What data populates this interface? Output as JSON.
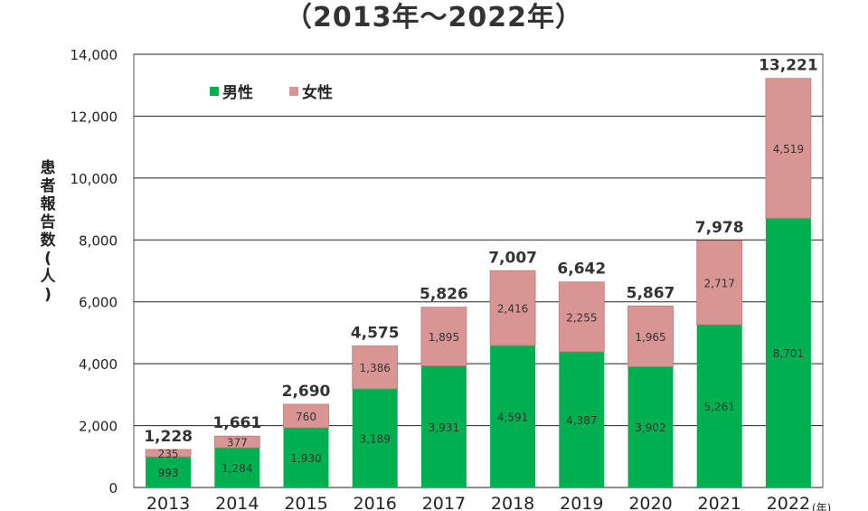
{
  "title": "（2013年～2022年）",
  "chart_data": {
    "type": "bar",
    "stacked": true,
    "title": "（2013年～2022年）",
    "ylabel": "患者報告数(人)",
    "xunit": "(年)",
    "categories": [
      "2013",
      "2014",
      "2015",
      "2016",
      "2017",
      "2018",
      "2019",
      "2020",
      "2021",
      "2022"
    ],
    "series": [
      {
        "name": "男性",
        "color": "#00b050",
        "values": [
          993,
          1284,
          1930,
          3189,
          3931,
          4591,
          4387,
          3902,
          5261,
          8701
        ]
      },
      {
        "name": "女性",
        "color": "#d99594",
        "values": [
          235,
          377,
          760,
          1386,
          1895,
          2416,
          2255,
          1965,
          2717,
          4519
        ]
      }
    ],
    "totals": [
      "1,228",
      "1,661",
      "2,690",
      "4,575",
      "5,826",
      "7,007",
      "6,642",
      "5,867",
      "7,978",
      "13,221"
    ],
    "value_labels": {
      "男性": [
        "993",
        "1,284",
        "1,930",
        "3,189",
        "3,931",
        "4,591",
        "4,387",
        "3,902",
        "5,261",
        "8,701"
      ],
      "女性": [
        "235",
        "377",
        "760",
        "1,386",
        "1,895",
        "2,416",
        "2,255",
        "1,965",
        "2,717",
        "4,519"
      ]
    },
    "ylim": [
      0,
      14000
    ],
    "yticks": [
      0,
      2000,
      4000,
      6000,
      8000,
      10000,
      12000,
      14000
    ],
    "ytick_labels": [
      "0",
      "2,000",
      "4,000",
      "6,000",
      "8,000",
      "10,000",
      "12,000",
      "14,000"
    ],
    "grid": true,
    "legend_position": "top-left"
  }
}
